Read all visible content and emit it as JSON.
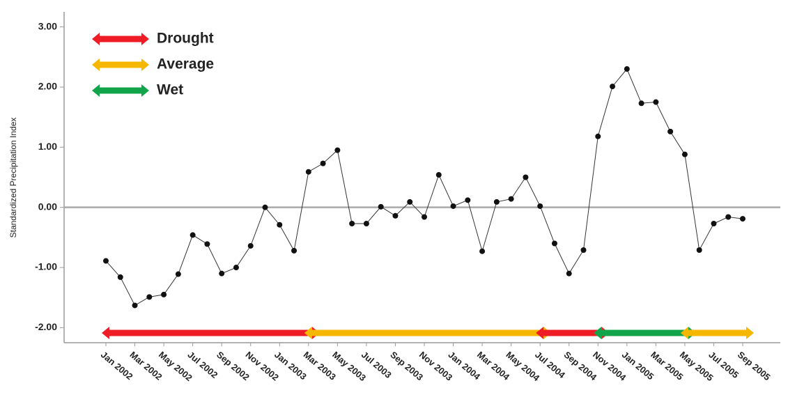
{
  "chart_data": {
    "type": "line",
    "y_label": "Standardized Precipitation Index",
    "categories": [
      "Jan 2002",
      null,
      "Mar 2002",
      null,
      "May 2002",
      null,
      "Jul 2002",
      null,
      "Sep 2002",
      null,
      "Nov 2002",
      null,
      "Jan 2003",
      null,
      "Mar 2003",
      null,
      "May 2003",
      null,
      "Jul 2003",
      null,
      "Sep 2003",
      null,
      "Nov 2003",
      null,
      "Jan 2004",
      null,
      "Mar 2004",
      null,
      "May 2004",
      null,
      "Jul 2004",
      null,
      "Sep 2004",
      null,
      "Nov 2004",
      null,
      "Jan 2005",
      null,
      "Mar 2005",
      null,
      "May 2005",
      null,
      "Jul 2005",
      null,
      "Sep 2005"
    ],
    "series": [
      {
        "color": "#333333",
        "values": [
          -0.89,
          -1.16,
          -1.63,
          -1.49,
          -1.45,
          -1.11,
          -0.46,
          -0.61,
          -1.1,
          -1.0,
          -0.64,
          0.0,
          -0.29,
          -0.72,
          0.59,
          0.73,
          0.95,
          -0.27,
          -0.27,
          0.01,
          -0.14,
          0.09,
          -0.16,
          0.54,
          0.02,
          0.12,
          -0.73,
          0.09,
          0.14,
          0.5,
          0.02,
          -0.6,
          -1.1,
          -0.71,
          1.18,
          2.01,
          2.3,
          1.73,
          1.75,
          1.26,
          0.88,
          -0.71,
          -0.27,
          -0.16,
          -0.19
        ]
      }
    ],
    "ylim": [
      -2.25,
      3.25
    ],
    "yticks": [
      {
        "value": -2,
        "label": "-2.00"
      },
      {
        "value": -1,
        "label": "-1.00"
      },
      {
        "value": 0,
        "label": "0.00"
      },
      {
        "value": 1,
        "label": "1.00"
      },
      {
        "value": 2,
        "label": "2.00"
      },
      {
        "value": 3,
        "label": "3.00"
      }
    ],
    "reference_line": 0,
    "legend": [
      {
        "name": "Drought",
        "color": "#ee1c25"
      },
      {
        "name": "Average",
        "color": "#f5b700"
      },
      {
        "name": "Wet",
        "color": "#12a44a"
      }
    ],
    "periods": [
      {
        "class": 0,
        "start": 0,
        "end": 14
      },
      {
        "class": 1,
        "start": 14,
        "end": 30
      },
      {
        "class": 0,
        "start": 30,
        "end": 34
      },
      {
        "class": 2,
        "start": 34,
        "end": 40
      },
      {
        "class": 1,
        "start": 40,
        "end": 44
      }
    ]
  }
}
